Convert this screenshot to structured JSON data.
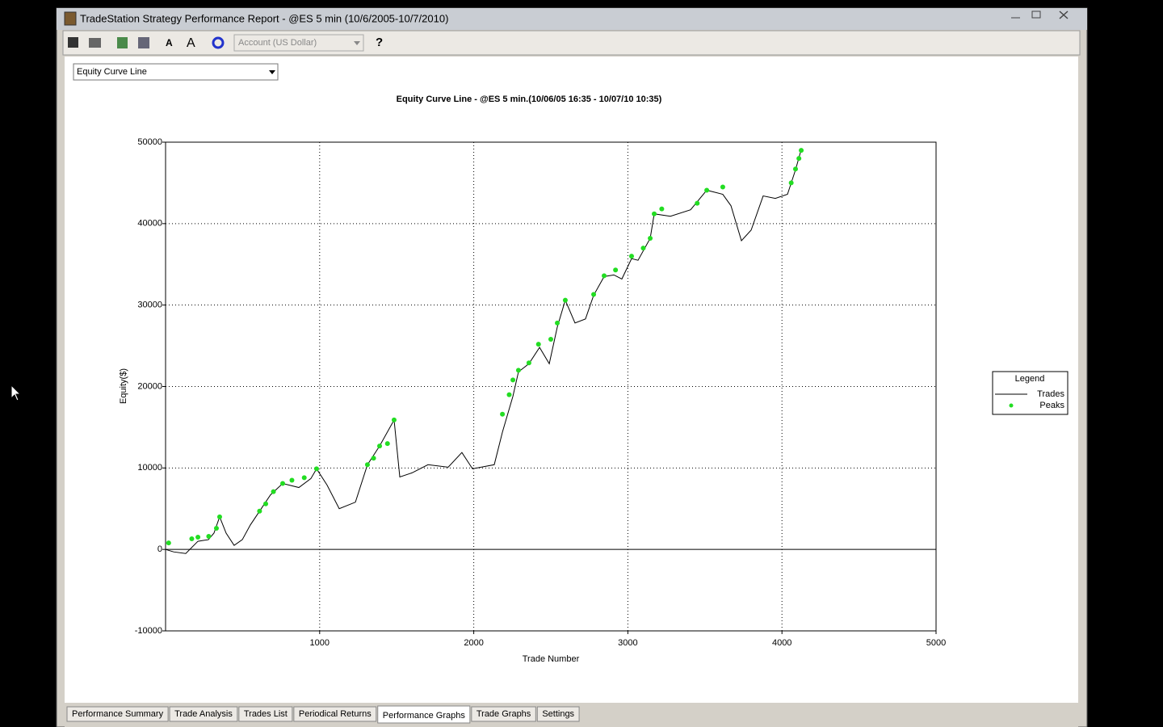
{
  "window": {
    "title": "TradeStation Strategy Performance Report - @ES 5 min (10/6/2005-10/7/2010)"
  },
  "toolbar": {
    "account": "Account (US Dollar)"
  },
  "view_select": "Equity Curve Line",
  "chart_data": {
    "type": "line",
    "title": "Equity Curve Line - @ES 5 min.(10/06/05 16:35 - 10/07/10 10:35)",
    "x_label": "Trade Number",
    "y_label": "Equity($)",
    "xlim": [
      0,
      5000
    ],
    "xticks": [
      1000,
      2000,
      3000,
      4000,
      5000
    ],
    "ylim": [
      -10000,
      50000
    ],
    "yticks": [
      -10000,
      0,
      10000,
      20000,
      30000,
      40000,
      50000
    ],
    "grid": true,
    "legend_title": "Legend",
    "legend": "right",
    "series": [
      {
        "name": "Trades",
        "color": "#000000",
        "type": "line",
        "x": [
          0,
          52,
          131,
          210,
          278,
          314,
          351,
          393,
          445,
          498,
          550,
          603,
          681,
          760,
          865,
          943,
          980,
          1048,
          1127,
          1232,
          1310,
          1389,
          1483,
          1520,
          1599,
          1703,
          1834,
          1923,
          1992,
          2133,
          2186,
          2254,
          2290,
          2358,
          2427,
          2490,
          2542,
          2594,
          2657,
          2725,
          2778,
          2846,
          2909,
          2961,
          3024,
          3066,
          3145,
          3171,
          3276,
          3407,
          3512,
          3616,
          3669,
          3737,
          3800,
          3878,
          3957,
          4036,
          4088,
          4125
        ],
        "values": [
          0,
          -300,
          -500,
          1000,
          1200,
          2000,
          4000,
          2000,
          500,
          1200,
          3000,
          4500,
          6700,
          8100,
          7600,
          8700,
          9900,
          7900,
          5000,
          5800,
          10400,
          12700,
          15900,
          8900,
          9400,
          10400,
          10100,
          11900,
          9900,
          10400,
          14400,
          18800,
          21800,
          22800,
          24800,
          22800,
          27300,
          30600,
          27800,
          28300,
          31200,
          33500,
          33700,
          33200,
          35700,
          35500,
          38200,
          41200,
          40900,
          41700,
          44100,
          43600,
          42200,
          37900,
          39200,
          43400,
          43100,
          43600,
          46600,
          49100
        ]
      },
      {
        "name": "Peaks",
        "color": "#22dd22",
        "type": "scatter",
        "x": [
          20,
          170,
          210,
          280,
          330,
          351,
          610,
          650,
          700,
          760,
          820,
          900,
          980,
          1310,
          1350,
          1389,
          1440,
          1483,
          2186,
          2230,
          2254,
          2290,
          2358,
          2420,
          2500,
          2542,
          2594,
          2778,
          2846,
          2920,
          3024,
          3100,
          3145,
          3171,
          3220,
          3450,
          3512,
          3616,
          4060,
          4088,
          4110,
          4125
        ],
        "values": [
          800,
          1300,
          1500,
          1600,
          2600,
          4000,
          4700,
          5600,
          7100,
          8100,
          8500,
          8800,
          9900,
          10400,
          11200,
          12700,
          13000,
          15900,
          16600,
          19000,
          20800,
          22000,
          22900,
          25200,
          25800,
          27800,
          30600,
          31300,
          33600,
          34300,
          36000,
          37000,
          38200,
          41200,
          41800,
          42500,
          44100,
          44500,
          45000,
          46700,
          48000,
          49000
        ]
      }
    ]
  },
  "tabs": [
    "Performance Summary",
    "Trade Analysis",
    "Trades List",
    "Periodical Returns",
    "Performance Graphs",
    "Trade Graphs",
    "Settings"
  ],
  "active_tab": 4
}
